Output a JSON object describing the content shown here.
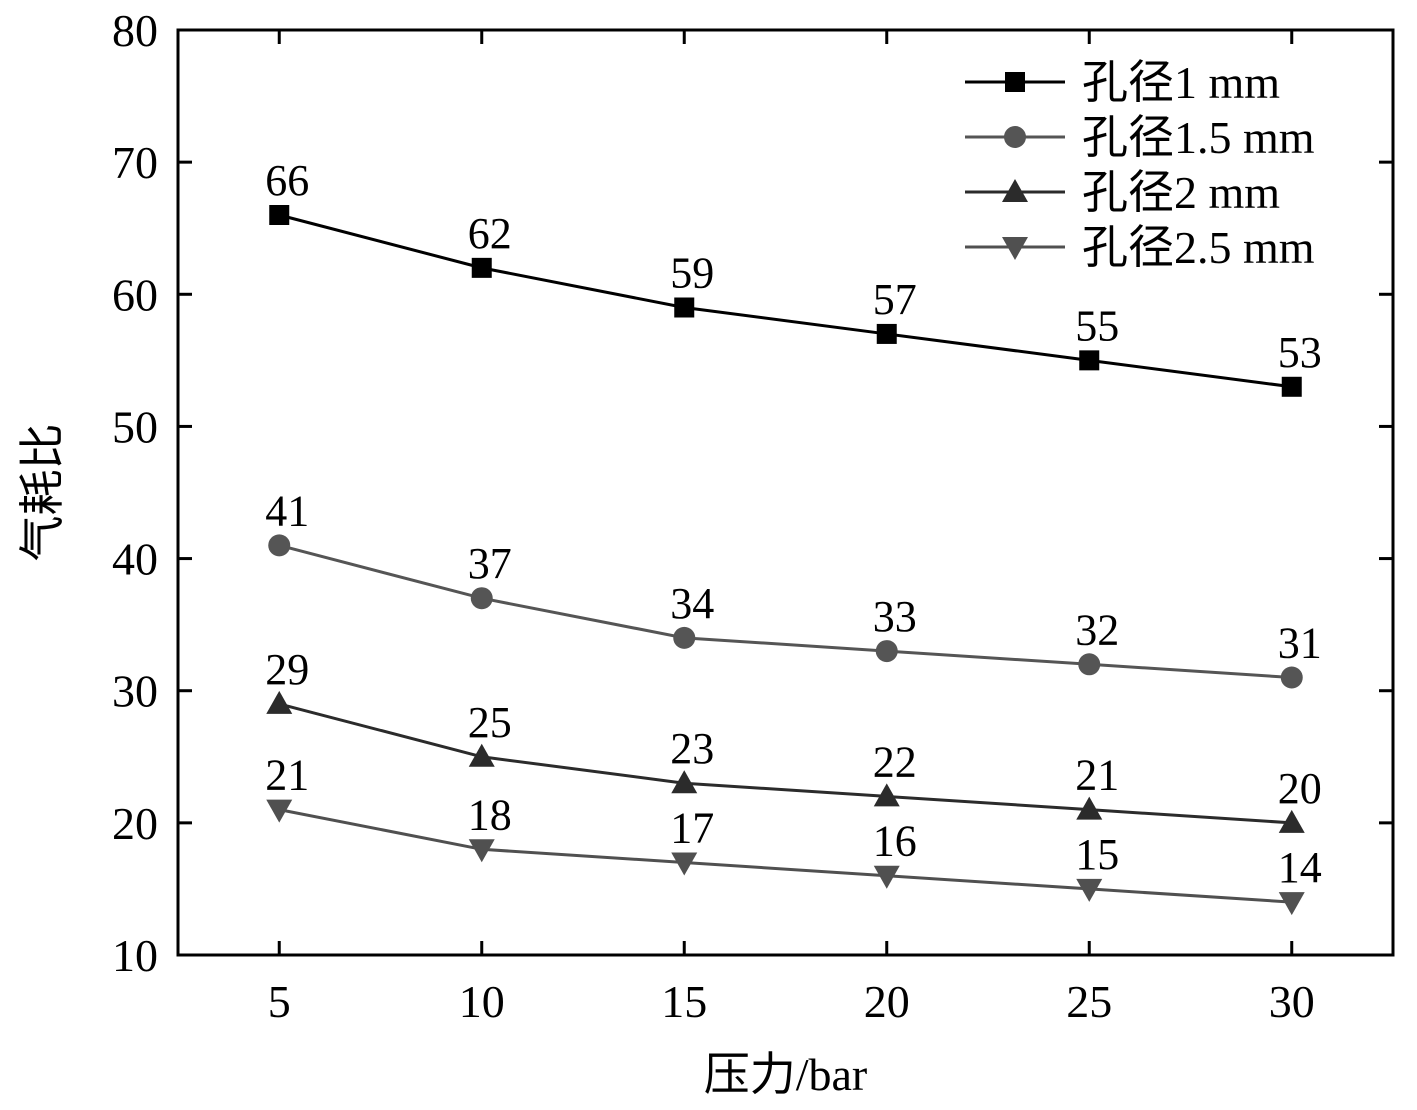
{
  "chart_data": {
    "type": "line",
    "title": "",
    "xlabel": "压力/bar",
    "ylabel": "气耗比",
    "x": [
      5,
      10,
      15,
      20,
      25,
      30
    ],
    "xlim": [
      2.5,
      32.5
    ],
    "ylim": [
      10,
      80
    ],
    "xticks": [
      "5",
      "10",
      "15",
      "20",
      "25",
      "30"
    ],
    "yticks": [
      "10",
      "20",
      "30",
      "40",
      "50",
      "60",
      "70",
      "80"
    ],
    "grid": false,
    "legend_position": "top-right",
    "series": [
      {
        "name": "孔径1 mm",
        "marker": "square",
        "color": "#000000",
        "values": [
          66,
          62,
          59,
          57,
          55,
          53
        ]
      },
      {
        "name": "孔径1.5 mm",
        "marker": "circle",
        "color": "#555555",
        "values": [
          41,
          37,
          34,
          33,
          32,
          31
        ]
      },
      {
        "name": "孔径2 mm",
        "marker": "triangle-up",
        "color": "#2b2b2b",
        "values": [
          29,
          25,
          23,
          22,
          21,
          20
        ]
      },
      {
        "name": "孔径2.5 mm",
        "marker": "triangle-down",
        "color": "#505050",
        "values": [
          21,
          18,
          17,
          16,
          15,
          14
        ]
      }
    ]
  }
}
